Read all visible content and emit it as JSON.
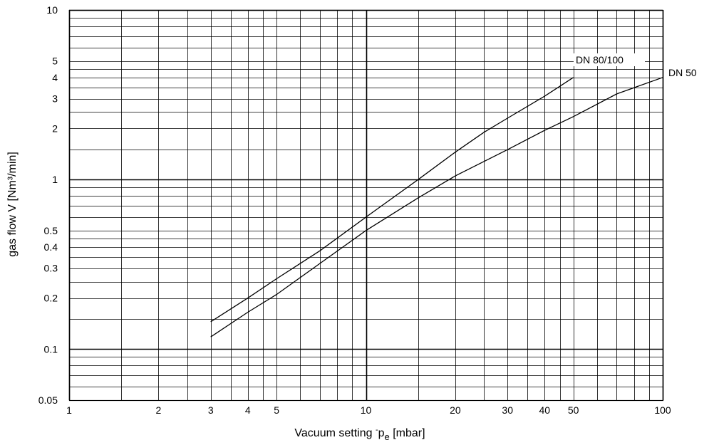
{
  "chart_data": {
    "type": "line",
    "x_scale": "log",
    "y_scale": "log",
    "xlim": [
      1,
      100
    ],
    "ylim": [
      0.05,
      10
    ],
    "grid": true,
    "xlabel": {
      "text": "Vacuum setting",
      "symbol_prefix": "-",
      "symbol": "p",
      "symbol_subscript": "e",
      "unit": "[mbar]"
    },
    "ylabel": "gas flow  V  [Nm³/min]",
    "x_tick_labels": [
      {
        "value": 1,
        "label": "1"
      },
      {
        "value": 2,
        "label": "2"
      },
      {
        "value": 3,
        "label": "3"
      },
      {
        "value": 4,
        "label": "4"
      },
      {
        "value": 5,
        "label": "5"
      },
      {
        "value": 10,
        "label": "10"
      },
      {
        "value": 20,
        "label": "20"
      },
      {
        "value": 30,
        "label": "30"
      },
      {
        "value": 40,
        "label": "40"
      },
      {
        "value": 50,
        "label": "50"
      },
      {
        "value": 100,
        "label": "100"
      }
    ],
    "y_tick_labels": [
      {
        "value": 0.05,
        "label": "0.05"
      },
      {
        "value": 0.1,
        "label": "0.1"
      },
      {
        "value": 0.2,
        "label": "0.2"
      },
      {
        "value": 0.3,
        "label": "0.3"
      },
      {
        "value": 0.4,
        "label": "0.4"
      },
      {
        "value": 0.5,
        "label": "0.5"
      },
      {
        "value": 1,
        "label": "1"
      },
      {
        "value": 2,
        "label": "2"
      },
      {
        "value": 3,
        "label": "3"
      },
      {
        "value": 4,
        "label": "4"
      },
      {
        "value": 5,
        "label": "5"
      },
      {
        "value": 10,
        "label": "10"
      }
    ],
    "series": [
      {
        "name": "DN 80/100",
        "color": "#000000",
        "points": [
          [
            3,
            0.145
          ],
          [
            4,
            0.2
          ],
          [
            5,
            0.26
          ],
          [
            7,
            0.38
          ],
          [
            10,
            0.6
          ],
          [
            15,
            1.0
          ],
          [
            20,
            1.45
          ],
          [
            25,
            1.9
          ],
          [
            30,
            2.3
          ],
          [
            40,
            3.1
          ],
          [
            50,
            4.0
          ]
        ]
      },
      {
        "name": "DN 50",
        "color": "#000000",
        "points": [
          [
            3,
            0.118
          ],
          [
            4,
            0.165
          ],
          [
            5,
            0.21
          ],
          [
            7,
            0.32
          ],
          [
            10,
            0.5
          ],
          [
            15,
            0.78
          ],
          [
            20,
            1.05
          ],
          [
            30,
            1.5
          ],
          [
            40,
            1.95
          ],
          [
            50,
            2.35
          ],
          [
            70,
            3.2
          ],
          [
            100,
            4.0
          ]
        ]
      }
    ]
  }
}
